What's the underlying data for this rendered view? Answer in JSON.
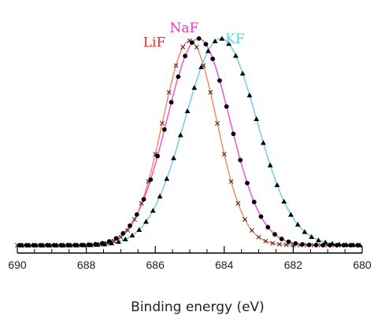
{
  "chart_data": {
    "type": "line",
    "title": "",
    "xlabel": "Binding energy (eV)",
    "ylabel": "",
    "xlim": [
      690,
      680
    ],
    "ylim": [
      0,
      1.0
    ],
    "x_reversed": true,
    "y_ticks_shown": false,
    "grid": false,
    "legend": "labels placed at peak tops",
    "x_ticks": [
      {
        "value": 690,
        "label": "690"
      },
      {
        "value": 688,
        "label": "688"
      },
      {
        "value": 686,
        "label": "686"
      },
      {
        "value": 684,
        "label": "684"
      },
      {
        "value": 682,
        "label": "682"
      },
      {
        "value": 680,
        "label": "680"
      }
    ],
    "series": [
      {
        "name": "LiF",
        "line_color": "#f4845f",
        "label_color": "#ff2020",
        "marker": "x",
        "marker_color": "#4a2a2a",
        "peak_position": 685.0,
        "peak_height": 0.95,
        "fwhm": 1.85,
        "baseline": 0.0
      },
      {
        "name": "NaF",
        "line_color": "#ff44dd",
        "label_color": "#ff33cc",
        "marker": "circle",
        "marker_color": "#000000",
        "peak_position": 684.75,
        "peak_height": 0.96,
        "fwhm": 2.15,
        "baseline": 0.0
      },
      {
        "name": "KF",
        "line_color": "#66ccee",
        "label_color": "#66ccee",
        "marker": "triangle",
        "marker_color": "#000000",
        "peak_position": 684.1,
        "peak_height": 0.96,
        "fwhm": 2.45,
        "baseline": 0.0
      }
    ]
  }
}
